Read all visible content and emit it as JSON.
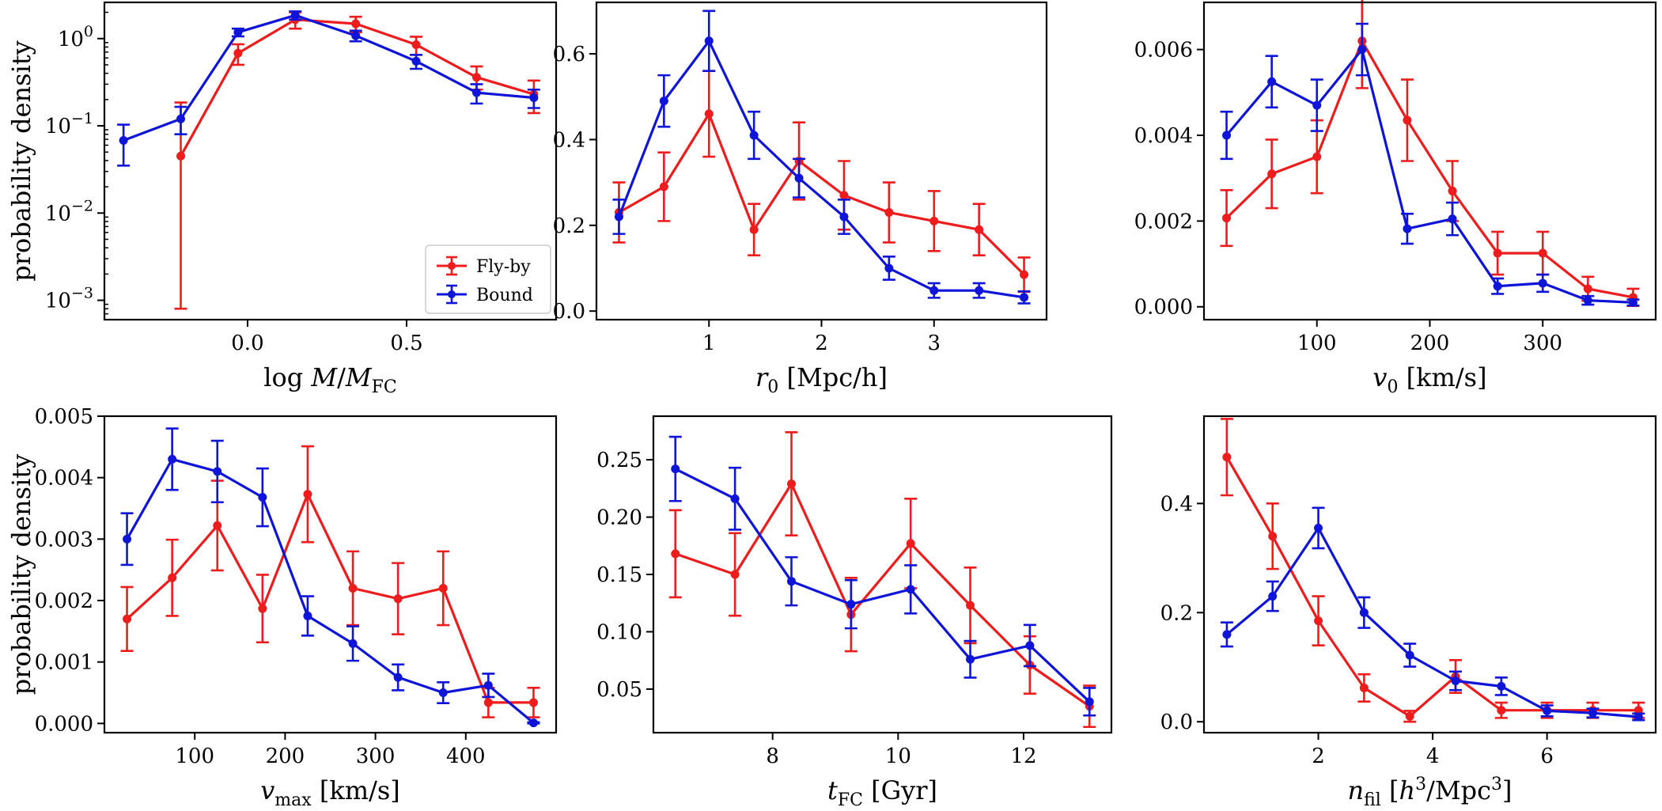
{
  "colors": {
    "flyby": "#ee1c1c",
    "bound": "#0e14d8"
  },
  "legend": {
    "flyby_label": "Fly-by",
    "bound_label": "Bound",
    "placement": "lower-right"
  },
  "ylabel_rows": {
    "top": "probability density",
    "bottom": "probability density"
  },
  "chart_data": [
    {
      "type": "line",
      "yscale": "log",
      "xlim": [
        -0.45,
        0.97
      ],
      "ylim": [
        0.0006,
        2.6
      ],
      "xticks": [
        0.0,
        0.5
      ],
      "xtick_labels": [
        "0.0",
        "0.5"
      ],
      "yticks": [
        0.001,
        0.01,
        0.1,
        1
      ],
      "ytick_labels": [
        [
          "10",
          "−3"
        ],
        [
          "10",
          "−2"
        ],
        [
          "10",
          "−1"
        ],
        [
          "10",
          "0"
        ]
      ],
      "xlabel_parts": [
        "log ",
        "M",
        "/",
        "M",
        "FC"
      ],
      "ylabel": "probability density",
      "series": [
        {
          "name": "Fly-by",
          "x": [
            -0.21,
            -0.03,
            0.15,
            0.34,
            0.53,
            0.72,
            0.9
          ],
          "y": [
            0.045,
            0.68,
            1.65,
            1.48,
            0.85,
            0.36,
            0.23
          ],
          "err_low": [
            0.0442,
            0.18,
            0.35,
            0.3,
            0.2,
            0.1,
            0.09
          ],
          "err_high": [
            0.14,
            0.18,
            0.35,
            0.3,
            0.2,
            0.12,
            0.1
          ]
        },
        {
          "name": "Bound",
          "x": [
            -0.39,
            -0.21,
            -0.03,
            0.15,
            0.34,
            0.53,
            0.72,
            0.9
          ],
          "y": [
            0.068,
            0.12,
            1.18,
            1.85,
            1.08,
            0.55,
            0.24,
            0.21
          ],
          "err_low": [
            0.033,
            0.04,
            0.12,
            0.2,
            0.15,
            0.1,
            0.06,
            0.05
          ],
          "err_high": [
            0.035,
            0.045,
            0.12,
            0.2,
            0.15,
            0.1,
            0.06,
            0.05
          ]
        }
      ],
      "legend": true
    },
    {
      "type": "line",
      "yscale": "linear",
      "xlim": [
        0.0,
        4.0
      ],
      "ylim": [
        -0.02,
        0.72
      ],
      "xticks": [
        1,
        2,
        3
      ],
      "xtick_labels": [
        "1",
        "2",
        "3"
      ],
      "yticks": [
        0.0,
        0.2,
        0.4,
        0.6
      ],
      "ytick_labels": [
        "0.0",
        "0.2",
        "0.4",
        "0.6"
      ],
      "xlabel_parts": [
        "r",
        "0",
        " [Mpc/h]"
      ],
      "series": [
        {
          "name": "Fly-by",
          "x": [
            0.2,
            0.6,
            1.0,
            1.4,
            1.8,
            2.2,
            2.6,
            3.0,
            3.4,
            3.8
          ],
          "y": [
            0.23,
            0.29,
            0.46,
            0.19,
            0.35,
            0.27,
            0.23,
            0.21,
            0.19,
            0.085
          ],
          "err_low": [
            0.07,
            0.08,
            0.1,
            0.06,
            0.09,
            0.08,
            0.07,
            0.07,
            0.06,
            0.04
          ],
          "err_high": [
            0.07,
            0.08,
            0.1,
            0.06,
            0.09,
            0.08,
            0.07,
            0.07,
            0.06,
            0.04
          ]
        },
        {
          "name": "Bound",
          "x": [
            0.2,
            0.6,
            1.0,
            1.4,
            1.8,
            2.2,
            2.6,
            3.0,
            3.4,
            3.8
          ],
          "y": [
            0.22,
            0.49,
            0.63,
            0.41,
            0.31,
            0.22,
            0.1,
            0.048,
            0.048,
            0.032
          ],
          "err_low": [
            0.04,
            0.06,
            0.07,
            0.055,
            0.045,
            0.04,
            0.027,
            0.017,
            0.017,
            0.014
          ],
          "err_high": [
            0.04,
            0.06,
            0.07,
            0.055,
            0.045,
            0.04,
            0.027,
            0.017,
            0.017,
            0.014
          ]
        }
      ]
    },
    {
      "type": "line",
      "yscale": "linear",
      "xlim": [
        0,
        400
      ],
      "ylim": [
        -0.0003,
        0.0071
      ],
      "xticks": [
        100,
        200,
        300
      ],
      "xtick_labels": [
        "100",
        "200",
        "300"
      ],
      "yticks": [
        0.0,
        0.002,
        0.004,
        0.006
      ],
      "ytick_labels": [
        "0.000",
        "0.002",
        "0.004",
        "0.006"
      ],
      "xlabel_parts": [
        "v",
        "0",
        " [km/s]"
      ],
      "series": [
        {
          "name": "Fly-by",
          "x": [
            20,
            60,
            100,
            140,
            180,
            220,
            260,
            300,
            340,
            380
          ],
          "y": [
            0.00207,
            0.0031,
            0.0035,
            0.0062,
            0.00435,
            0.0027,
            0.00125,
            0.00125,
            0.00042,
            0.00022
          ],
          "err_low": [
            0.00065,
            0.0008,
            0.00085,
            0.0011,
            0.00095,
            0.0007,
            0.0005,
            0.0005,
            0.00028,
            0.0002
          ],
          "err_high": [
            0.00065,
            0.0008,
            0.00085,
            0.0011,
            0.00095,
            0.0007,
            0.0005,
            0.0005,
            0.00028,
            0.0002
          ]
        },
        {
          "name": "Bound",
          "x": [
            20,
            60,
            100,
            140,
            180,
            220,
            260,
            300,
            340,
            380
          ],
          "y": [
            0.004,
            0.00525,
            0.0047,
            0.006,
            0.00182,
            0.00205,
            0.00048,
            0.00055,
            0.00015,
            0.0001
          ],
          "err_low": [
            0.00055,
            0.0006,
            0.0006,
            0.0006,
            0.00035,
            0.00038,
            0.00018,
            0.0002,
            0.0001,
            7e-05
          ],
          "err_high": [
            0.00055,
            0.0006,
            0.0006,
            0.0006,
            0.00035,
            0.00038,
            0.00018,
            0.0002,
            0.0001,
            7e-05
          ]
        }
      ]
    },
    {
      "type": "line",
      "yscale": "linear",
      "xlim": [
        0,
        500
      ],
      "ylim": [
        -0.00015,
        0.005
      ],
      "xticks": [
        100,
        200,
        300,
        400
      ],
      "xtick_labels": [
        "100",
        "200",
        "300",
        "400"
      ],
      "yticks": [
        0.0,
        0.001,
        0.002,
        0.003,
        0.004,
        0.005
      ],
      "ytick_labels": [
        "0.000",
        "0.001",
        "0.002",
        "0.003",
        "0.004",
        "0.005"
      ],
      "xlabel_parts": [
        "v",
        "max",
        " [km/s]"
      ],
      "ylabel": "probability density",
      "series": [
        {
          "name": "Fly-by",
          "x": [
            25,
            75,
            125,
            175,
            225,
            275,
            325,
            375,
            425,
            475
          ],
          "y": [
            0.0017,
            0.00237,
            0.00322,
            0.00187,
            0.00373,
            0.0022,
            0.00203,
            0.0022,
            0.00034,
            0.00034
          ],
          "err_low": [
            0.00052,
            0.00062,
            0.00073,
            0.00055,
            0.00078,
            0.0006,
            0.00058,
            0.0006,
            0.00024,
            0.00024
          ],
          "err_high": [
            0.00052,
            0.00062,
            0.00073,
            0.00055,
            0.00078,
            0.0006,
            0.00058,
            0.0006,
            0.00024,
            0.00024
          ]
        },
        {
          "name": "Bound",
          "x": [
            25,
            75,
            125,
            175,
            225,
            275,
            325,
            375,
            425,
            475
          ],
          "y": [
            0.003,
            0.0043,
            0.0041,
            0.00368,
            0.00175,
            0.0013,
            0.00075,
            0.0005,
            0.00062,
            1e-05
          ],
          "err_low": [
            0.00042,
            0.0005,
            0.0005,
            0.00047,
            0.00032,
            0.00028,
            0.00021,
            0.00017,
            0.00019,
            1e-05
          ],
          "err_high": [
            0.00042,
            0.0005,
            0.0005,
            0.00047,
            0.00032,
            0.00028,
            0.00021,
            0.00017,
            0.00019,
            1e-05
          ]
        }
      ]
    },
    {
      "type": "line",
      "yscale": "linear",
      "xlim": [
        6.1,
        13.4
      ],
      "ylim": [
        0.012,
        0.288
      ],
      "xticks": [
        8,
        10,
        12
      ],
      "xtick_labels": [
        "8",
        "10",
        "12"
      ],
      "yticks": [
        0.05,
        0.1,
        0.15,
        0.2,
        0.25
      ],
      "ytick_labels": [
        "0.05",
        "0.10",
        "0.15",
        "0.20",
        "0.25"
      ],
      "xlabel_parts": [
        "t",
        "FC",
        " [Gyr]"
      ],
      "series": [
        {
          "name": "Fly-by",
          "x": [
            6.45,
            7.4,
            8.3,
            9.25,
            10.2,
            11.15,
            12.1,
            13.05
          ],
          "y": [
            0.168,
            0.15,
            0.229,
            0.115,
            0.177,
            0.123,
            0.071,
            0.035
          ],
          "err_low": [
            0.038,
            0.036,
            0.045,
            0.032,
            0.039,
            0.033,
            0.025,
            0.018
          ],
          "err_high": [
            0.038,
            0.036,
            0.045,
            0.032,
            0.039,
            0.033,
            0.025,
            0.018
          ]
        },
        {
          "name": "Bound",
          "x": [
            6.45,
            7.4,
            8.3,
            9.25,
            10.2,
            11.15,
            12.1,
            13.05
          ],
          "y": [
            0.242,
            0.216,
            0.144,
            0.124,
            0.137,
            0.076,
            0.088,
            0.039
          ],
          "err_low": [
            0.028,
            0.027,
            0.021,
            0.021,
            0.021,
            0.016,
            0.018,
            0.012
          ],
          "err_high": [
            0.028,
            0.027,
            0.021,
            0.021,
            0.021,
            0.016,
            0.018,
            0.012
          ]
        }
      ]
    },
    {
      "type": "line",
      "yscale": "linear",
      "xlim": [
        0,
        7.9
      ],
      "ylim": [
        -0.02,
        0.56
      ],
      "xticks": [
        2,
        4,
        6
      ],
      "xtick_labels": [
        "2",
        "4",
        "6"
      ],
      "yticks": [
        0.0,
        0.2,
        0.4
      ],
      "ytick_labels": [
        "0.0",
        "0.2",
        "0.4"
      ],
      "xlabel_parts": [
        "n",
        "fil",
        " [",
        "h",
        "3",
        "/Mpc",
        "3",
        "]"
      ],
      "series": [
        {
          "name": "Fly-by",
          "x": [
            0.4,
            1.2,
            2.0,
            2.8,
            3.6,
            4.4,
            5.2,
            6.0,
            6.8,
            7.6
          ],
          "y": [
            0.485,
            0.34,
            0.185,
            0.062,
            0.01,
            0.083,
            0.021,
            0.021,
            0.021,
            0.021
          ],
          "err_low": [
            0.07,
            0.06,
            0.045,
            0.025,
            0.01,
            0.03,
            0.014,
            0.014,
            0.014,
            0.014
          ],
          "err_high": [
            0.07,
            0.06,
            0.045,
            0.025,
            0.01,
            0.03,
            0.014,
            0.014,
            0.014,
            0.014
          ]
        },
        {
          "name": "Bound",
          "x": [
            0.4,
            1.2,
            2.0,
            2.8,
            3.6,
            4.4,
            5.2,
            6.0,
            6.8,
            7.6
          ],
          "y": [
            0.16,
            0.23,
            0.355,
            0.2,
            0.122,
            0.075,
            0.065,
            0.02,
            0.016,
            0.009
          ],
          "err_low": [
            0.022,
            0.027,
            0.037,
            0.028,
            0.021,
            0.017,
            0.016,
            0.01,
            0.008,
            0.006
          ],
          "err_high": [
            0.022,
            0.027,
            0.037,
            0.028,
            0.021,
            0.017,
            0.016,
            0.01,
            0.008,
            0.006
          ]
        }
      ]
    }
  ]
}
